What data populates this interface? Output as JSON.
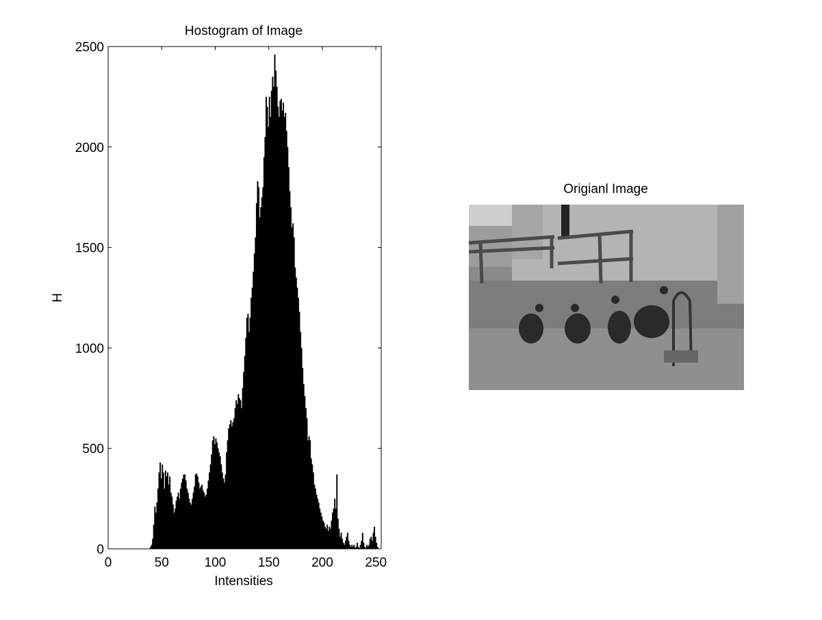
{
  "chart_data": {
    "type": "histogram",
    "title": "Hostogram of Image",
    "xlabel": "Intensities",
    "ylabel": "H",
    "color": "#000000",
    "bins": [
      0,
      1,
      2,
      3,
      4,
      5,
      6,
      7,
      8,
      9,
      10,
      11,
      12,
      13,
      14,
      15,
      16,
      17,
      18,
      19,
      20,
      21,
      22,
      23,
      24,
      25,
      26,
      27,
      28,
      29,
      30,
      31,
      32,
      33,
      34,
      35,
      36,
      37,
      38,
      39,
      40,
      41,
      42,
      43,
      44,
      45,
      46,
      47,
      48,
      49,
      50,
      51,
      52,
      53,
      54,
      55,
      56,
      57,
      58,
      59,
      60,
      61,
      62,
      63,
      64,
      65,
      66,
      67,
      68,
      69,
      70,
      71,
      72,
      73,
      74,
      75,
      76,
      77,
      78,
      79,
      80,
      81,
      82,
      83,
      84,
      85,
      86,
      87,
      88,
      89,
      90,
      91,
      92,
      93,
      94,
      95,
      96,
      97,
      98,
      99,
      100,
      101,
      102,
      103,
      104,
      105,
      106,
      107,
      108,
      109,
      110,
      111,
      112,
      113,
      114,
      115,
      116,
      117,
      118,
      119,
      120,
      121,
      122,
      123,
      124,
      125,
      126,
      127,
      128,
      129,
      130,
      131,
      132,
      133,
      134,
      135,
      136,
      137,
      138,
      139,
      140,
      141,
      142,
      143,
      144,
      145,
      146,
      147,
      148,
      149,
      150,
      151,
      152,
      153,
      154,
      155,
      156,
      157,
      158,
      159,
      160,
      161,
      162,
      163,
      164,
      165,
      166,
      167,
      168,
      169,
      170,
      171,
      172,
      173,
      174,
      175,
      176,
      177,
      178,
      179,
      180,
      181,
      182,
      183,
      184,
      185,
      186,
      187,
      188,
      189,
      190,
      191,
      192,
      193,
      194,
      195,
      196,
      197,
      198,
      199,
      200,
      201,
      202,
      203,
      204,
      205,
      206,
      207,
      208,
      209,
      210,
      211,
      212,
      213,
      214,
      215,
      216,
      217,
      218,
      219,
      220,
      221,
      222,
      223,
      224,
      225,
      226,
      227,
      228,
      229,
      230,
      231,
      232,
      233,
      234,
      235,
      236,
      237,
      238,
      239,
      240,
      241,
      242,
      243,
      244,
      245,
      246,
      247,
      248,
      249,
      250,
      251,
      252,
      253,
      254,
      255,
      256
    ],
    "counts": [
      0,
      0,
      0,
      0,
      0,
      0,
      0,
      0,
      0,
      0,
      0,
      0,
      0,
      0,
      0,
      0,
      0,
      0,
      0,
      0,
      0,
      0,
      0,
      0,
      0,
      0,
      0,
      0,
      0,
      0,
      0,
      0,
      0,
      0,
      0,
      0,
      0,
      0,
      0,
      10,
      20,
      50,
      120,
      210,
      180,
      230,
      300,
      380,
      430,
      350,
      420,
      380,
      300,
      390,
      360,
      380,
      320,
      360,
      280,
      260,
      220,
      180,
      200,
      240,
      260,
      280,
      250,
      300,
      330,
      350,
      370,
      370,
      340,
      300,
      280,
      250,
      230,
      220,
      250,
      280,
      310,
      370,
      375,
      360,
      330,
      300,
      310,
      320,
      290,
      280,
      260,
      270,
      300,
      340,
      380,
      420,
      470,
      540,
      560,
      520,
      550,
      530,
      500,
      480,
      460,
      420,
      380,
      350,
      330,
      370,
      480,
      540,
      600,
      620,
      640,
      610,
      630,
      650,
      700,
      740,
      720,
      770,
      750,
      740,
      700,
      800,
      880,
      960,
      1050,
      1150,
      1170,
      1080,
      1150,
      1250,
      1300,
      1380,
      1470,
      1550,
      1720,
      1830,
      1800,
      1650,
      1700,
      1750,
      1800,
      1950,
      2050,
      2250,
      2200,
      2100,
      2250,
      2150,
      2280,
      2350,
      2300,
      2460,
      2380,
      2300,
      2200,
      2150,
      2230,
      2240,
      2180,
      2220,
      2150,
      2170,
      2080,
      2000,
      1900,
      1780,
      1700,
      1600,
      1620,
      1550,
      1400,
      1350,
      1300,
      1250,
      1180,
      1080,
      1000,
      900,
      820,
      760,
      700,
      650,
      540,
      560,
      540,
      450,
      420,
      380,
      320,
      300,
      270,
      250,
      230,
      200,
      180,
      160,
      140,
      130,
      110,
      100,
      120,
      90,
      110,
      100,
      140,
      180,
      200,
      250,
      200,
      370,
      150,
      100,
      60,
      80,
      50,
      30,
      20,
      40,
      60,
      80,
      40,
      20,
      10,
      20,
      10,
      20,
      5,
      10,
      30,
      10,
      5,
      20,
      40,
      80,
      30,
      10,
      5,
      20,
      10,
      20,
      50,
      60,
      40,
      80,
      110,
      60,
      30,
      10,
      0,
      0,
      0,
      0
    ],
    "xlim": [
      0,
      255
    ],
    "xticks": [
      0,
      50,
      100,
      150,
      200,
      250
    ],
    "ylim": [
      0,
      2500
    ],
    "yticks": [
      0,
      500,
      1000,
      1500,
      2000,
      2500
    ]
  },
  "image": {
    "title": "Origianl Image"
  }
}
